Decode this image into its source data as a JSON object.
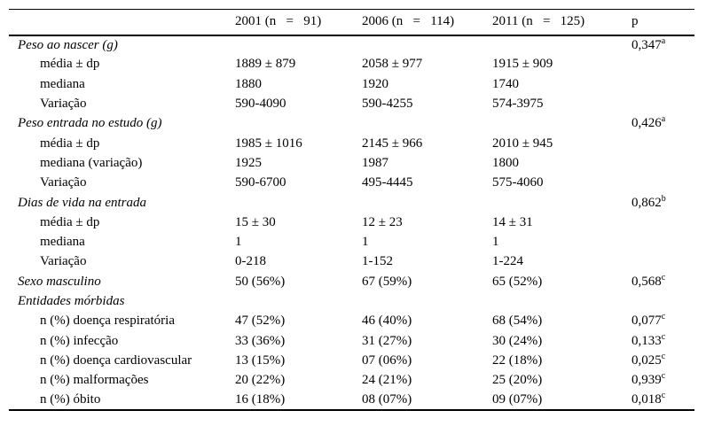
{
  "table": {
    "columns": [
      "2001 (n   =   91)",
      "2006 (n   =   114)",
      "2011 (n   =   125)",
      "p"
    ],
    "rows": [
      {
        "type": "section",
        "label": "Peso ao nascer (g)",
        "v2001": "",
        "v2006": "",
        "v2011": "",
        "p": "0,347",
        "p_sup": "a"
      },
      {
        "type": "sub",
        "label": "média ± dp",
        "v2001": "1889 ± 879",
        "v2006": "2058 ± 977",
        "v2011": "1915 ± 909",
        "p": "",
        "p_sup": ""
      },
      {
        "type": "sub",
        "label": "mediana",
        "v2001": "1880",
        "v2006": "1920",
        "v2011": "1740",
        "p": "",
        "p_sup": ""
      },
      {
        "type": "sub",
        "label": "Variação",
        "v2001": "590-4090",
        "v2006": "590-4255",
        "v2011": "574-3975",
        "p": "",
        "p_sup": ""
      },
      {
        "type": "section",
        "label": "Peso entrada no estudo (g)",
        "v2001": "",
        "v2006": "",
        "v2011": "",
        "p": "0,426",
        "p_sup": "a"
      },
      {
        "type": "sub",
        "label": "média ± dp",
        "v2001": "1985 ± 1016",
        "v2006": "2145 ± 966",
        "v2011": "2010 ± 945",
        "p": "",
        "p_sup": ""
      },
      {
        "type": "sub",
        "label": "mediana (variação)",
        "v2001": "1925",
        "v2006": "1987",
        "v2011": "1800",
        "p": "",
        "p_sup": ""
      },
      {
        "type": "sub",
        "label": "Variação",
        "v2001": "590-6700",
        "v2006": "495-4445",
        "v2011": "575-4060",
        "p": "",
        "p_sup": ""
      },
      {
        "type": "section",
        "label": "Dias de vida na entrada",
        "v2001": "",
        "v2006": "",
        "v2011": "",
        "p": "0,862",
        "p_sup": "b"
      },
      {
        "type": "sub",
        "label": "média ± dp",
        "v2001": "15 ± 30",
        "v2006": "12 ± 23",
        "v2011": "14 ± 31",
        "p": "",
        "p_sup": ""
      },
      {
        "type": "sub",
        "label": "mediana",
        "v2001": "1",
        "v2006": "1",
        "v2011": "1",
        "p": "",
        "p_sup": ""
      },
      {
        "type": "sub",
        "label": "Variação",
        "v2001": "0-218",
        "v2006": "1-152",
        "v2011": "1-224",
        "p": "",
        "p_sup": ""
      },
      {
        "type": "section",
        "label": "Sexo masculino",
        "v2001": "50 (56%)",
        "v2006": "67 (59%)",
        "v2011": "65 (52%)",
        "p": "0,568",
        "p_sup": "c"
      },
      {
        "type": "section",
        "label": "Entidades mórbidas",
        "v2001": "",
        "v2006": "",
        "v2011": "",
        "p": "",
        "p_sup": ""
      },
      {
        "type": "sub",
        "label": "n (%) doença respiratória",
        "v2001": "47 (52%)",
        "v2006": "46 (40%)",
        "v2011": "68 (54%)",
        "p": "0,077",
        "p_sup": "c"
      },
      {
        "type": "sub",
        "label": "n (%) infecção",
        "v2001": "33 (36%)",
        "v2006": "31 (27%)",
        "v2011": "30 (24%)",
        "p": "0,133",
        "p_sup": "c"
      },
      {
        "type": "sub",
        "label": "n (%) doença cardiovascular",
        "v2001": "13 (15%)",
        "v2006": "07 (06%)",
        "v2011": "22 (18%)",
        "p": "0,025",
        "p_sup": "c"
      },
      {
        "type": "sub",
        "label": "n (%) malformações",
        "v2001": "20 (22%)",
        "v2006": "24 (21%)",
        "v2011": "25 (20%)",
        "p": "0,939",
        "p_sup": "c"
      },
      {
        "type": "sub",
        "label": "n (%) óbito",
        "v2001": "16 (18%)",
        "v2006": "08 (07%)",
        "v2011": "09 (07%)",
        "p": "0,018",
        "p_sup": "c"
      }
    ]
  }
}
